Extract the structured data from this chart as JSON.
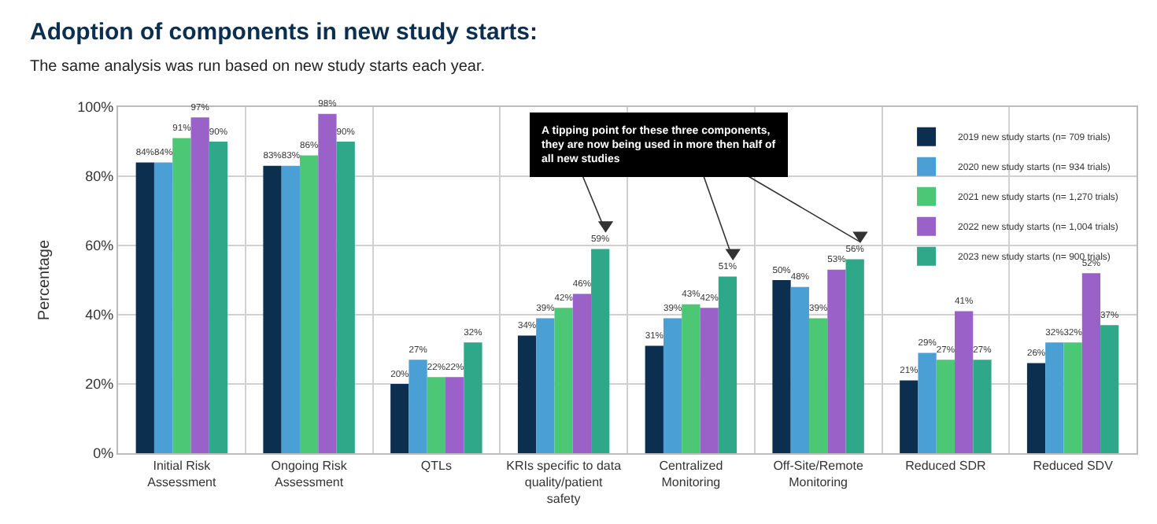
{
  "chart_data": {
    "type": "bar",
    "title": "Adoption of components in new study starts:",
    "subtitle": "The same analysis was run based on new study starts each year.",
    "ylabel": "Percentage",
    "categories": [
      "Initial Risk Assessment",
      "Ongoing Risk Assessment",
      "QTLs",
      "KRIs specific to data quality/patient safety",
      "Centralized Monitoring",
      "Off-Site/Remote Monitoring",
      "Reduced SDR",
      "Reduced SDV"
    ],
    "series": [
      {
        "name": "2019 new study starts (n= 709 trials)",
        "color": "#0d2f4f",
        "values": [
          84,
          83,
          20,
          34,
          31,
          50,
          21,
          26
        ]
      },
      {
        "name": "2020 new study starts (n= 934 trials)",
        "color": "#4a9fd4",
        "values": [
          84,
          83,
          27,
          39,
          39,
          48,
          29,
          32
        ]
      },
      {
        "name": "2021 new study starts (n= 1,270 trials)",
        "color": "#4cc776",
        "values": [
          91,
          86,
          22,
          42,
          43,
          39,
          27,
          32
        ]
      },
      {
        "name": "2022 new study starts (n= 1,004 trials)",
        "color": "#9a62c9",
        "values": [
          97,
          98,
          22,
          46,
          42,
          53,
          41,
          52
        ]
      },
      {
        "name": "2023 new study starts (n= 900 trials)",
        "color": "#2fa88a",
        "values": [
          90,
          90,
          32,
          59,
          51,
          56,
          27,
          37
        ]
      }
    ],
    "ylim": [
      0,
      100
    ],
    "yticks": [
      {
        "value": 0,
        "label": "0%"
      },
      {
        "value": 20,
        "label": "20%"
      },
      {
        "value": 40,
        "label": "40%"
      },
      {
        "value": 60,
        "label": "60%"
      },
      {
        "value": 80,
        "label": "80%"
      },
      {
        "value": 100,
        "label": "100%"
      }
    ],
    "value_labels": [
      [
        "84%",
        "83%",
        "20%",
        "34%",
        "31%",
        "50%",
        "21%",
        "26%"
      ],
      [
        "84%",
        "83%",
        "27%",
        "39%",
        "39%",
        "48%",
        "29%",
        "32%"
      ],
      [
        "91%",
        "86%",
        "22%",
        "42%",
        "43%",
        "39%",
        "27%",
        "32%"
      ],
      [
        "97%",
        "98%",
        "22%",
        "46%",
        "42%",
        "53%",
        "41%",
        "52%"
      ],
      [
        "90%",
        "90%",
        "32%",
        "59%",
        "51%",
        "56%",
        "27%",
        "37%"
      ]
    ],
    "annotations": [
      "A tipping point for these three components, they are now being used in more then half of all new studies"
    ],
    "grid": true,
    "legend": "top right"
  }
}
